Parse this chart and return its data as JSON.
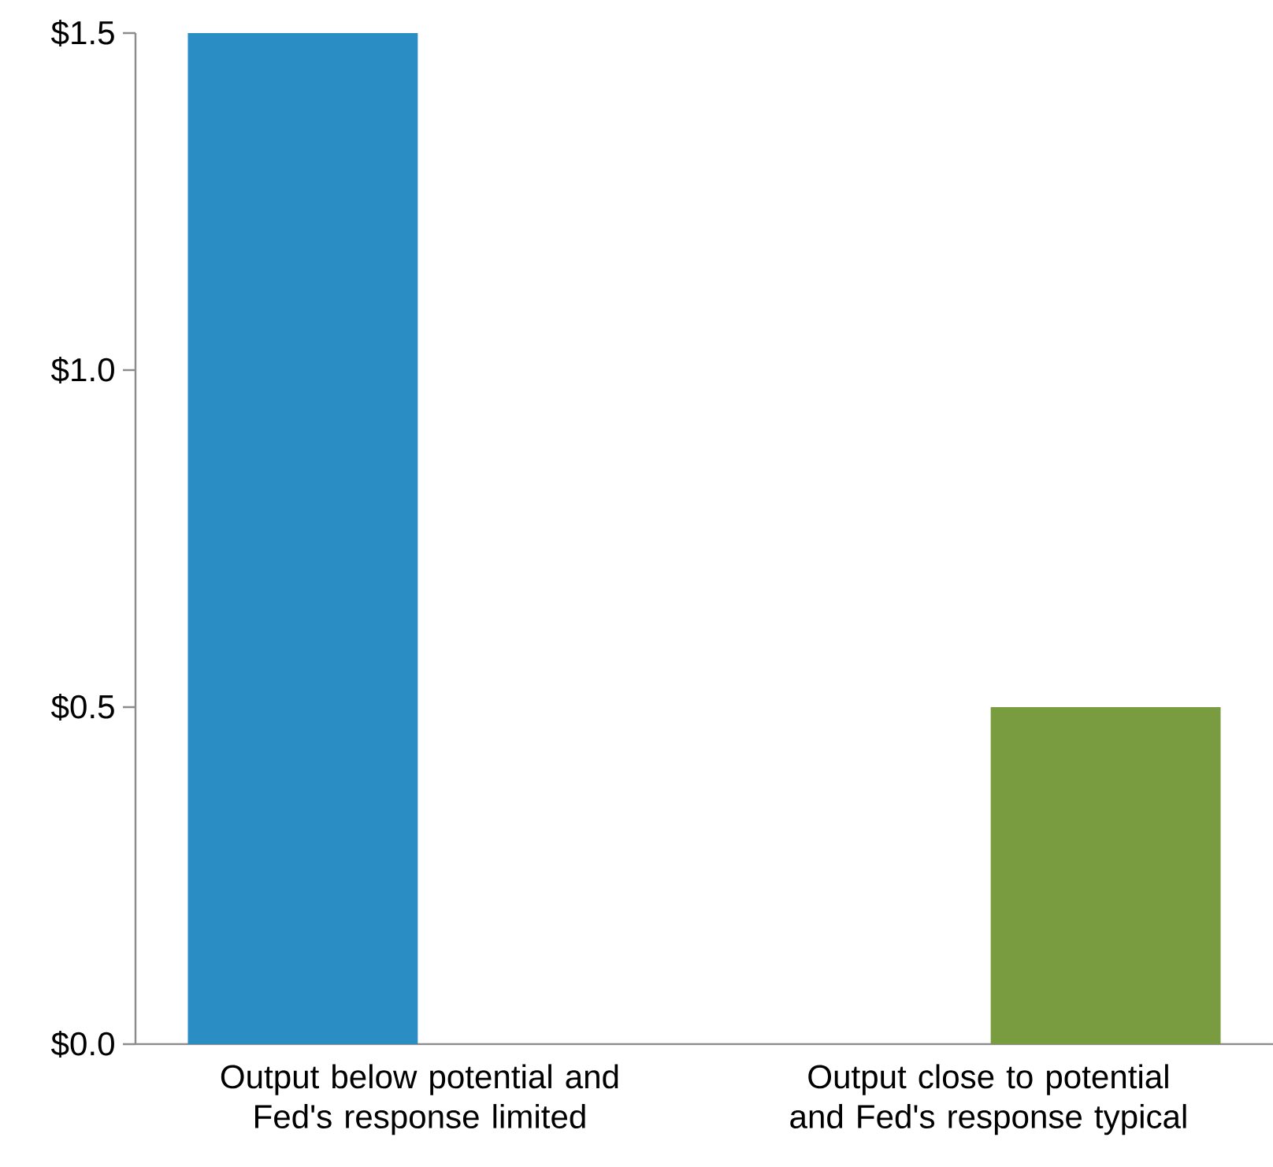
{
  "chart_data": {
    "type": "bar",
    "categories": [
      "Output below potential and Fed's response limited",
      "Output close to potential and Fed's response typical"
    ],
    "values": [
      1.5,
      0.5
    ],
    "colors": [
      "#2a8ec4",
      "#7a9c40"
    ],
    "ylim": [
      0,
      1.5
    ],
    "yticks": [
      {
        "value": 0,
        "label": "$0.0"
      },
      {
        "value": 0.5,
        "label": "$0.5"
      },
      {
        "value": 1.0,
        "label": "$1.0"
      },
      {
        "value": 1.5,
        "label": "$1.5"
      }
    ],
    "grid": false
  }
}
